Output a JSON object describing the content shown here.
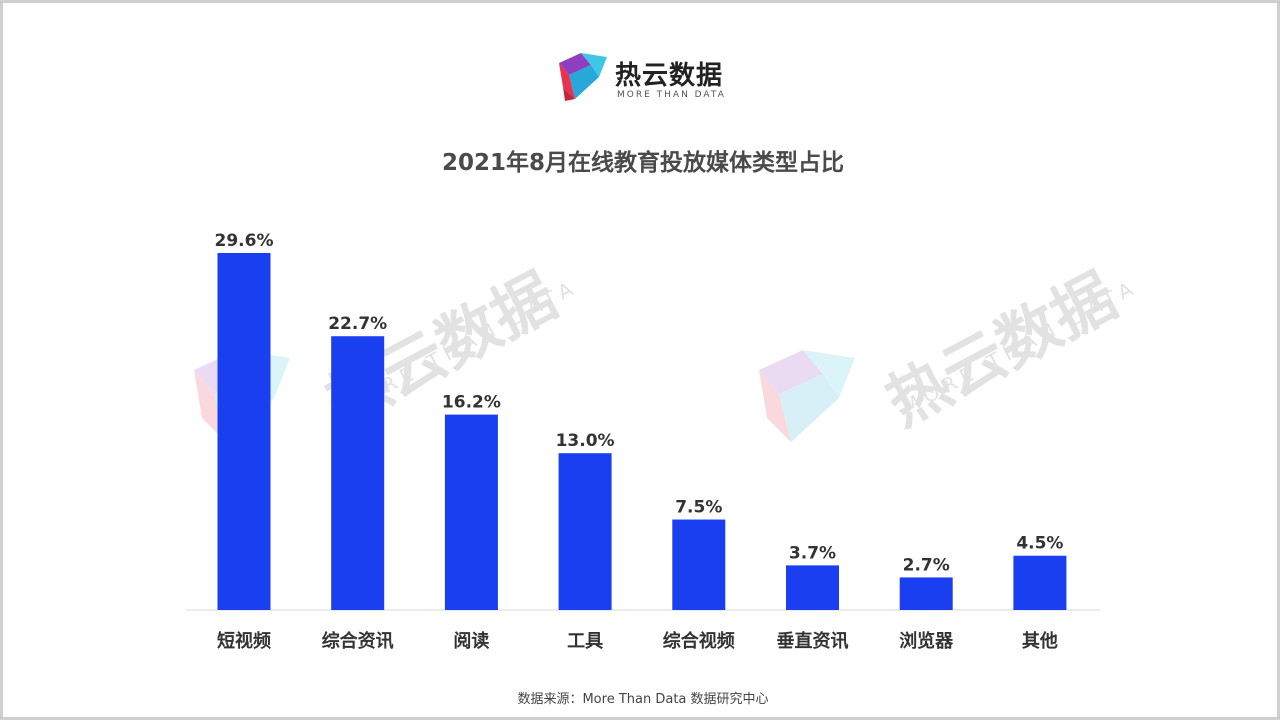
{
  "logo": {
    "name": "热云数据",
    "tagline": "MORE THAN DATA"
  },
  "colors": {
    "bar": "#1a3ff0",
    "title": "#4a4a4a",
    "label": "#333333",
    "axis": "#d9d9d9"
  },
  "watermark": {
    "text": "热云数据",
    "tagline": "MORE THAN DATA"
  },
  "chart_data": {
    "type": "bar",
    "title": "2021年8月在线教育投放媒体类型占比",
    "categories": [
      "短视频",
      "综合资讯",
      "阅读",
      "工具",
      "综合视频",
      "垂直资讯",
      "浏览器",
      "其他"
    ],
    "values": [
      29.6,
      22.7,
      16.2,
      13.0,
      7.5,
      3.7,
      2.7,
      4.5
    ],
    "value_labels": [
      "29.6%",
      "22.7%",
      "16.2%",
      "13.0%",
      "7.5%",
      "3.7%",
      "2.7%",
      "4.5%"
    ],
    "unit": "%",
    "ylim": [
      0,
      29.6
    ],
    "grid": false,
    "legend": "none"
  },
  "source": "数据来源：More Than Data 数据研究中心"
}
